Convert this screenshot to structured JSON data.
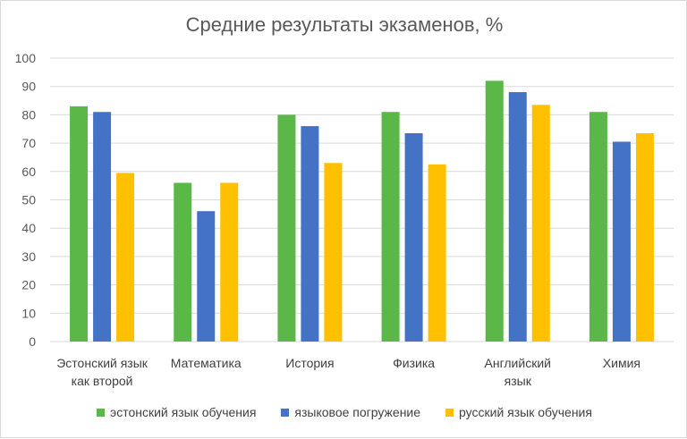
{
  "chart_data": {
    "type": "bar",
    "title": "Средние результаты экзаменов, %",
    "categories": [
      [
        "Эстонский язык",
        "как второй"
      ],
      [
        "Математика"
      ],
      [
        "История"
      ],
      [
        "Физика"
      ],
      [
        "Английский",
        "язык"
      ],
      [
        "Химия"
      ]
    ],
    "series": [
      {
        "name": "эстонский язык обучения",
        "color": "#5bb747",
        "values": [
          83,
          56,
          80,
          81,
          92,
          81
        ]
      },
      {
        "name": "языковое погружение",
        "color": "#4472c4",
        "values": [
          81,
          46,
          76,
          73.5,
          88,
          70.5
        ]
      },
      {
        "name": "русский язык обучения",
        "color": "#ffc000",
        "values": [
          59.5,
          56,
          63,
          62.5,
          83.5,
          73.5
        ]
      }
    ],
    "ylim": [
      0,
      100
    ],
    "yticks": [
      0,
      10,
      20,
      30,
      40,
      50,
      60,
      70,
      80,
      90,
      100
    ],
    "grid": true,
    "legend_position": "bottom"
  }
}
